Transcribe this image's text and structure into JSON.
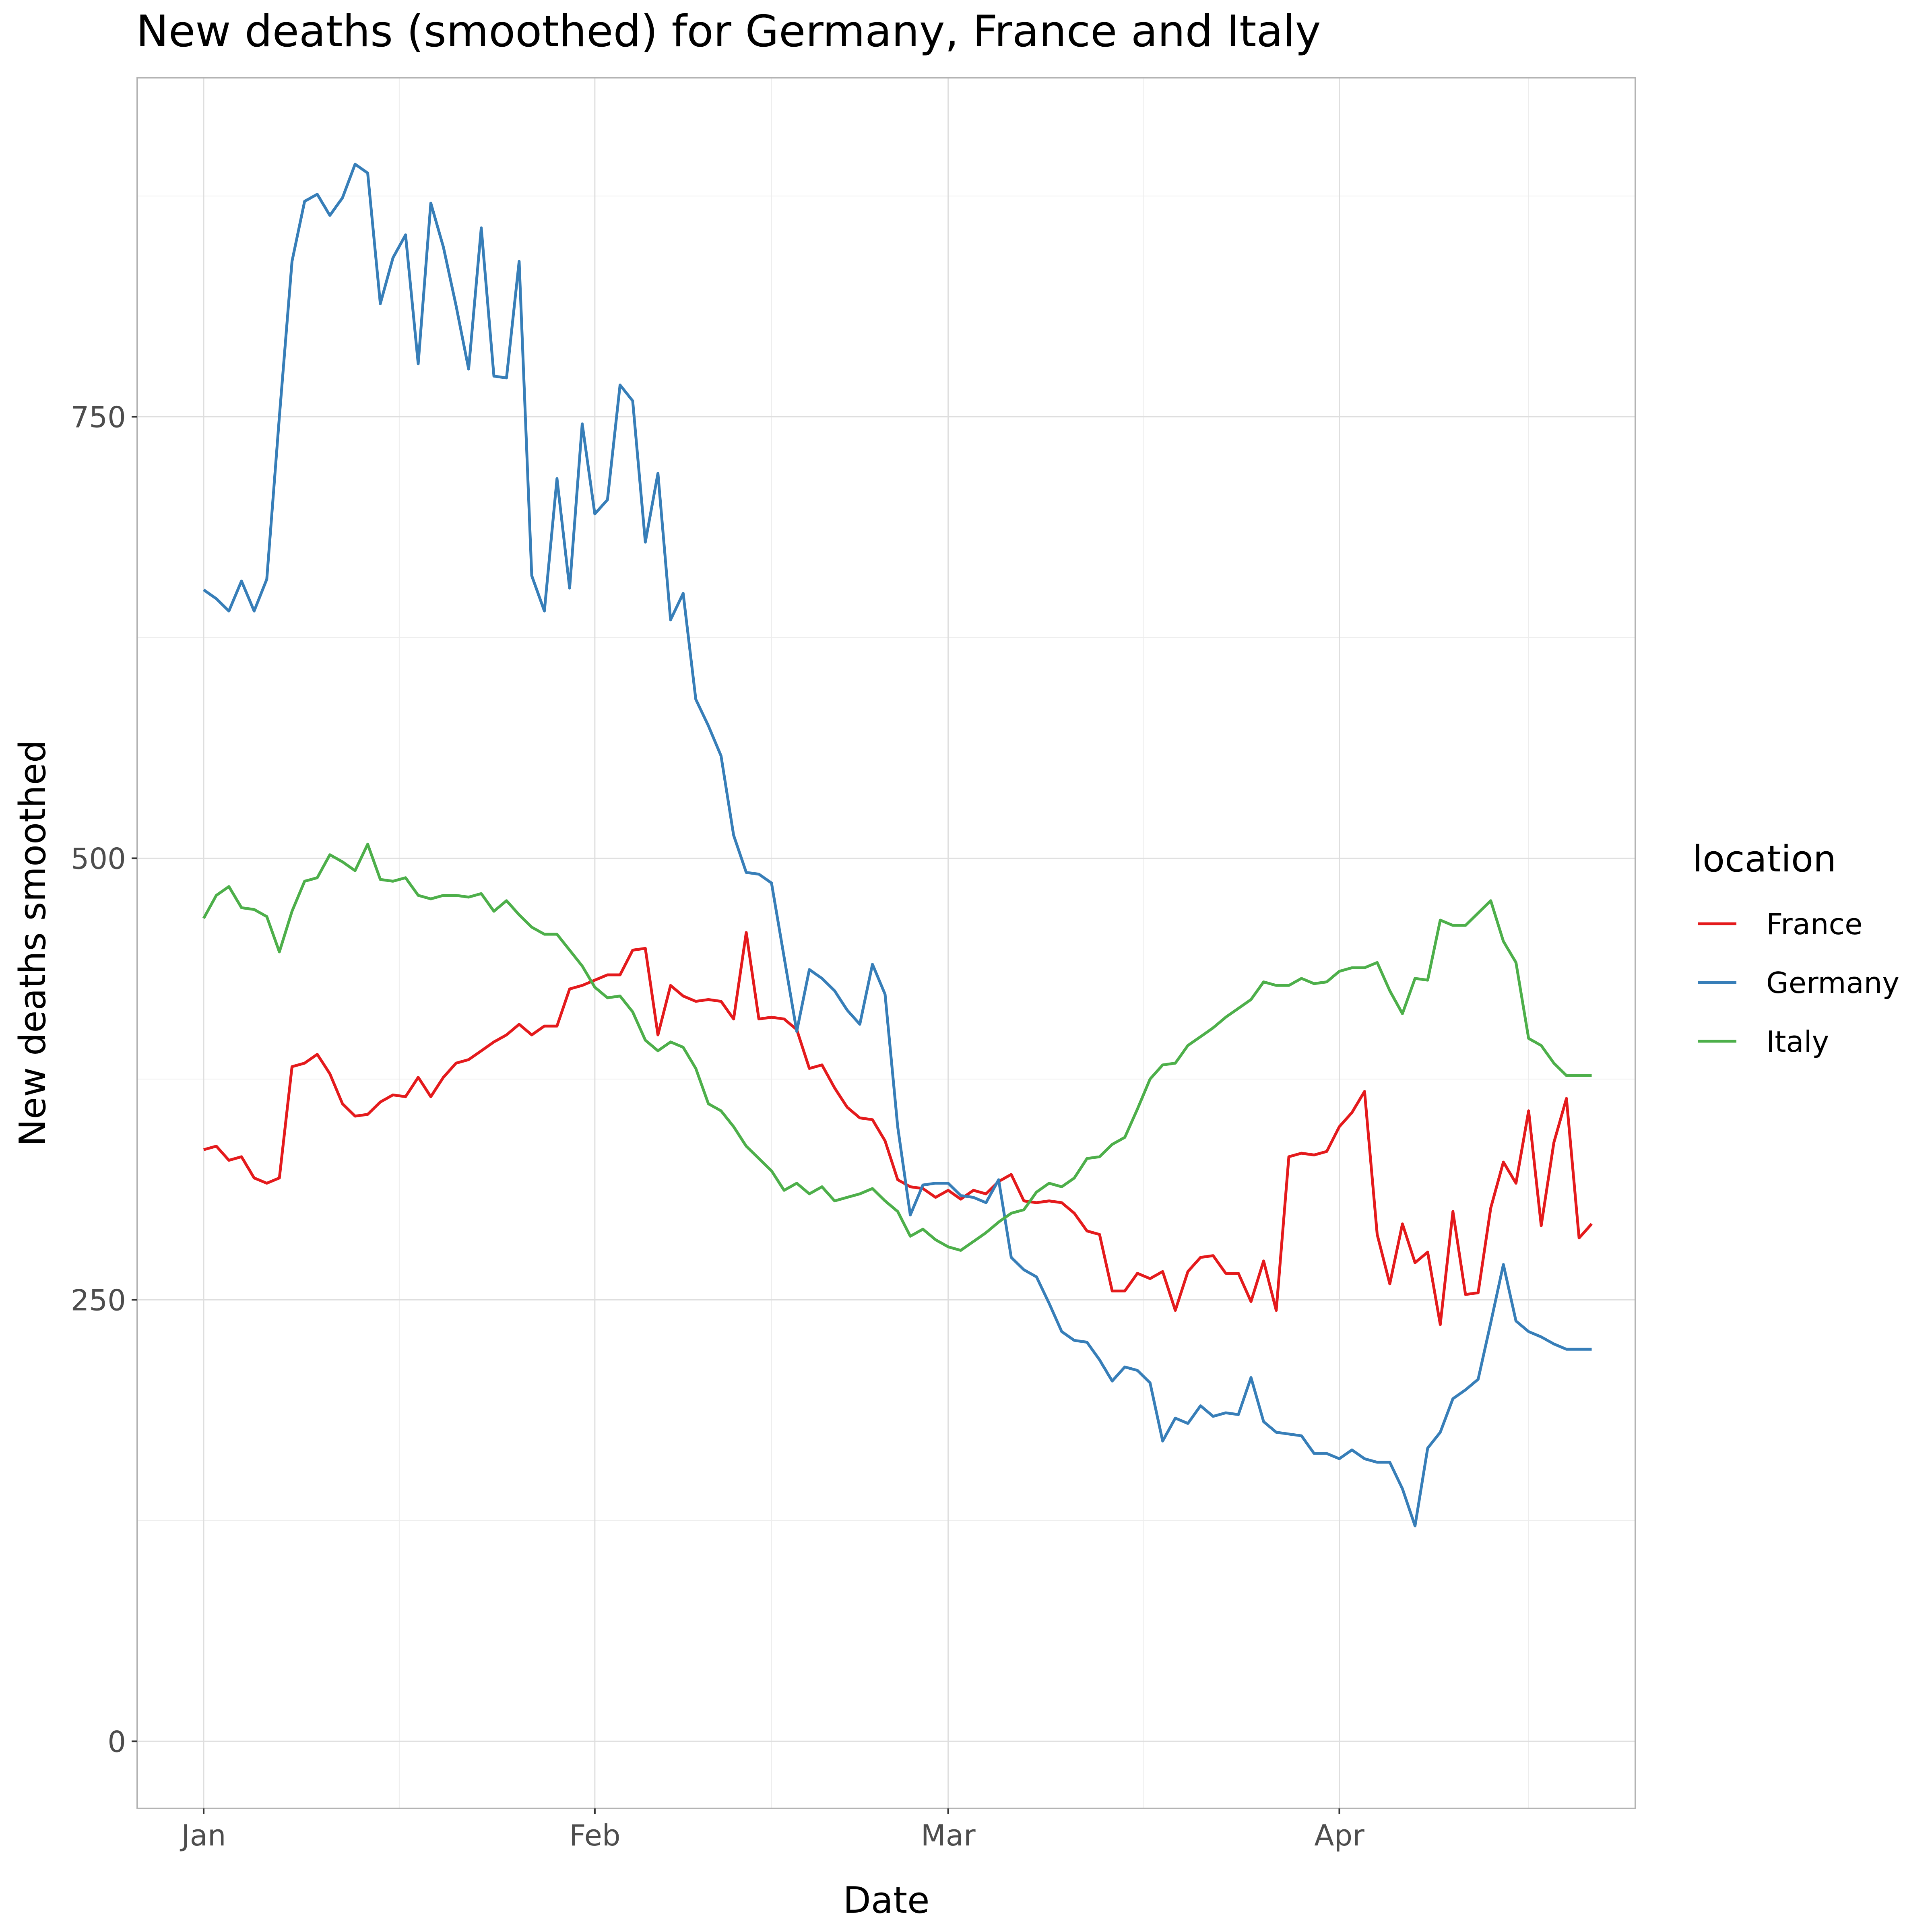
{
  "chart_data": {
    "type": "line",
    "title": "New deaths (smoothed) for Germany, France and Italy",
    "xlabel": "Date",
    "ylabel": "New deaths smoothed",
    "x_start": "Jan 1",
    "x_ticks": [
      "Jan",
      "Feb",
      "Mar",
      "Apr"
    ],
    "y_ticks": [
      0,
      250,
      500,
      750
    ],
    "ylim": [
      -38,
      942
    ],
    "grid": true,
    "legend_title": "location",
    "legend_position": "right",
    "series": [
      {
        "name": "France",
        "color": "#E41A1C",
        "values": [
          335,
          337,
          329,
          331,
          319,
          316,
          319,
          382,
          384,
          389,
          378,
          361,
          354,
          355,
          362,
          366,
          365,
          376,
          365,
          376,
          384,
          386,
          391,
          396,
          400,
          406,
          400,
          405,
          405,
          426,
          428,
          431,
          434,
          434,
          448,
          449,
          400,
          428,
          422,
          419,
          420,
          419,
          409,
          458,
          409,
          410,
          409,
          403,
          381,
          383,
          370,
          359,
          353,
          352,
          340,
          318,
          314,
          313,
          308,
          312,
          307,
          312,
          310,
          317,
          321,
          306,
          305,
          306,
          305,
          299,
          289,
          287,
          255,
          255,
          265,
          262,
          266,
          244,
          266,
          274,
          275,
          265,
          265,
          249,
          272,
          244,
          331,
          333,
          332,
          334,
          348,
          356,
          368,
          287,
          259,
          293,
          271,
          277,
          236,
          300,
          253,
          254,
          302,
          328,
          316,
          357,
          292,
          339,
          364,
          285,
          293
        ]
      },
      {
        "name": "Germany",
        "color": "#377EB8",
        "values": [
          652,
          647,
          640,
          657,
          640,
          658,
          750,
          838,
          872,
          876,
          864,
          874,
          893,
          888,
          814,
          840,
          853,
          780,
          871,
          846,
          813,
          777,
          857,
          773,
          772,
          838,
          660,
          640,
          715,
          653,
          746,
          695,
          703,
          768,
          759,
          679,
          718,
          635,
          650,
          590,
          575,
          558,
          513,
          492,
          491,
          486,
          444,
          402,
          437,
          432,
          425,
          414,
          406,
          440,
          423,
          348,
          298,
          315,
          316,
          316,
          309,
          308,
          305,
          318,
          274,
          267,
          263,
          248,
          232,
          227,
          226,
          216,
          204,
          212,
          210,
          203,
          170,
          183,
          180,
          190,
          184,
          186,
          185,
          206,
          181,
          175,
          174,
          173,
          163,
          163,
          160,
          165,
          160,
          158,
          158,
          143,
          122,
          166,
          175,
          194,
          199,
          205,
          237,
          270,
          238,
          232,
          229,
          225,
          222,
          222,
          222
        ]
      },
      {
        "name": "Italy",
        "color": "#4DAF4A",
        "values": [
          466,
          479,
          484,
          472,
          471,
          467,
          447,
          470,
          487,
          489,
          502,
          498,
          493,
          508,
          488,
          487,
          489,
          479,
          477,
          479,
          479,
          478,
          480,
          470,
          476,
          468,
          461,
          457,
          457,
          448,
          439,
          427,
          421,
          422,
          413,
          397,
          391,
          396,
          393,
          381,
          361,
          357,
          348,
          337,
          330,
          323,
          312,
          316,
          310,
          314,
          306,
          308,
          310,
          313,
          306,
          300,
          286,
          290,
          284,
          280,
          278,
          283,
          288,
          294,
          299,
          301,
          311,
          316,
          314,
          319,
          330,
          331,
          338,
          342,
          358,
          375,
          383,
          384,
          394,
          399,
          404,
          410,
          415,
          420,
          430,
          428,
          428,
          432,
          429,
          430,
          436,
          438,
          438,
          441,
          425,
          412,
          432,
          431,
          465,
          462,
          462,
          469,
          476,
          453,
          441,
          398,
          394,
          384,
          377,
          377,
          377
        ]
      }
    ]
  }
}
